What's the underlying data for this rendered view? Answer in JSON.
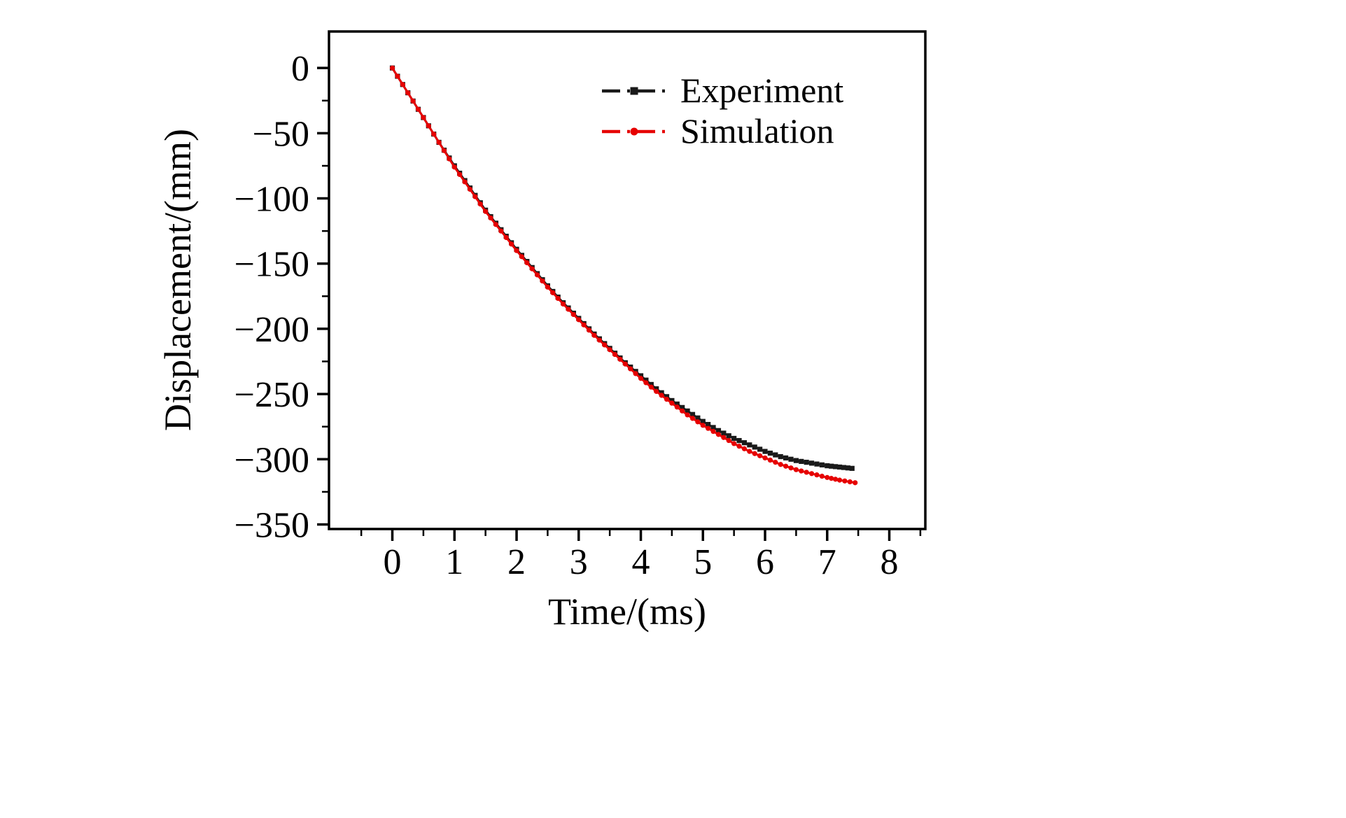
{
  "chart_data": {
    "type": "scatter",
    "title": "",
    "xlabel": "Time/(ms)",
    "ylabel": "Displacement/(mm)",
    "xlim": [
      -1.02,
      8.58
    ],
    "ylim": [
      -353.5,
      28
    ],
    "grid": false,
    "legend_position": "upper right",
    "x_major_ticks": [
      0,
      1,
      2,
      3,
      4,
      5,
      6,
      7,
      8
    ],
    "x_tick_labels": [
      "0",
      "1",
      "2",
      "3",
      "4",
      "5",
      "6",
      "7",
      "8"
    ],
    "x_minor_step": 0.5,
    "y_major_ticks": [
      0,
      -50,
      -100,
      -150,
      -200,
      -250,
      -300,
      -350
    ],
    "y_tick_labels": [
      "0",
      "−50",
      "−100",
      "−150",
      "−200",
      "−250",
      "−300",
      "−350"
    ],
    "y_minor_step": 25,
    "series": [
      {
        "name": "Experiment",
        "color": "#1a1a1a",
        "marker": "square",
        "line_style": "dash-dot",
        "x": [
          0,
          0.25,
          0.5,
          0.75,
          1,
          1.25,
          1.5,
          1.75,
          2,
          2.25,
          2.5,
          2.75,
          3,
          3.25,
          3.5,
          3.75,
          4,
          4.25,
          4.5,
          4.75,
          5,
          5.25,
          5.5,
          5.75,
          6,
          6.25,
          6.5,
          6.75,
          7,
          7.2,
          7.4
        ],
        "y": [
          0,
          -19,
          -38,
          -57,
          -75,
          -92,
          -109,
          -124,
          -139,
          -153,
          -167,
          -180,
          -192,
          -204,
          -215,
          -226,
          -236,
          -246,
          -255,
          -263,
          -271,
          -278,
          -284,
          -289,
          -294,
          -298,
          -301,
          -303,
          -305,
          -306,
          -307
        ]
      },
      {
        "name": "Simulation",
        "color": "#e60000",
        "marker": "circle",
        "line_style": "dash-dot",
        "x": [
          0,
          0.25,
          0.5,
          0.75,
          1,
          1.25,
          1.5,
          1.75,
          2,
          2.25,
          2.5,
          2.75,
          3,
          3.25,
          3.5,
          3.75,
          4,
          4.25,
          4.5,
          4.75,
          5,
          5.25,
          5.5,
          5.75,
          6,
          6.25,
          6.5,
          6.75,
          7,
          7.2,
          7.45
        ],
        "y": [
          0,
          -19,
          -38,
          -57,
          -76,
          -93,
          -110,
          -125,
          -140,
          -154,
          -168,
          -181,
          -193,
          -205,
          -216,
          -227,
          -238,
          -248,
          -257,
          -266,
          -274,
          -281,
          -288,
          -294,
          -299,
          -304,
          -308,
          -311,
          -314,
          -316,
          -318
        ]
      }
    ]
  }
}
